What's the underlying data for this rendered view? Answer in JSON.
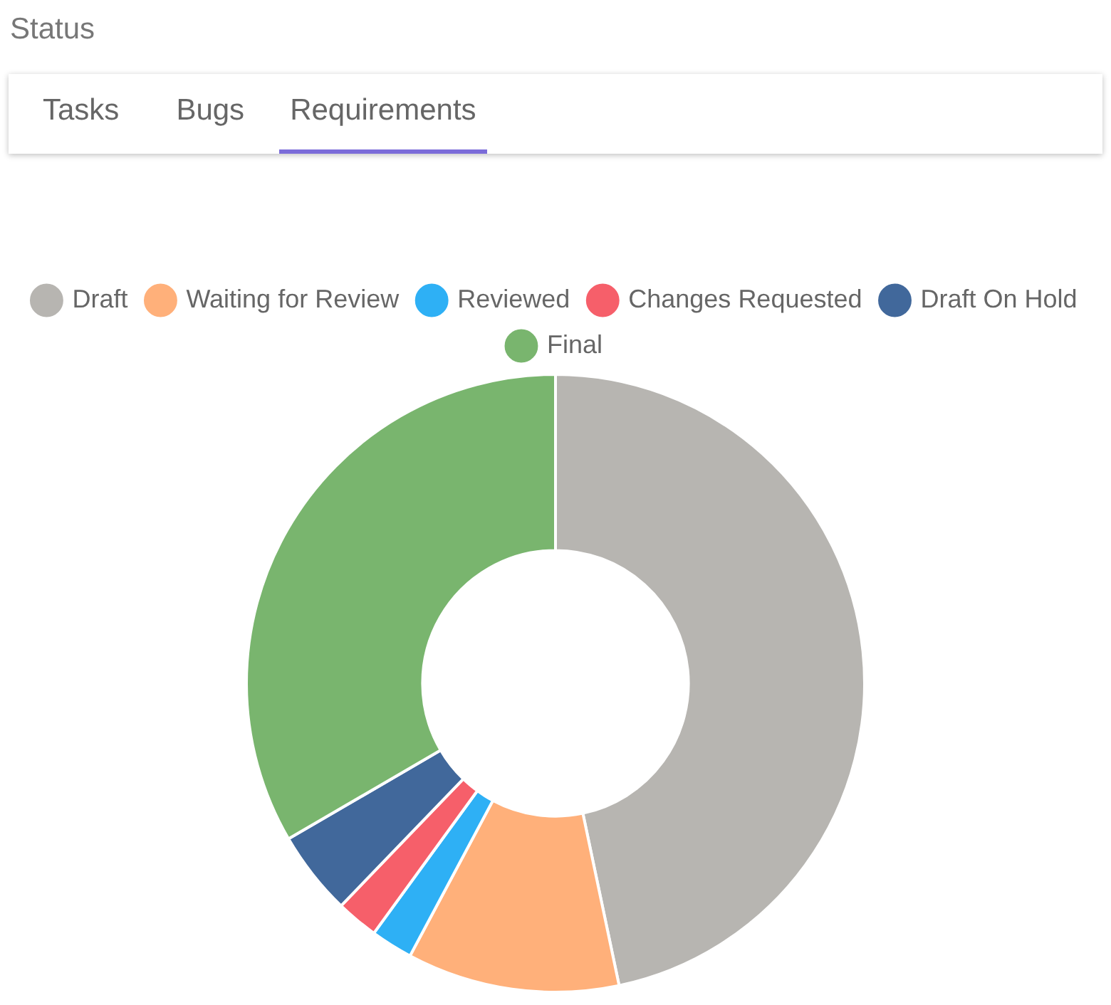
{
  "chart_data": {
    "type": "donut",
    "title": "Status",
    "annotations": [
      "Tasks",
      "Bugs",
      "Requirements"
    ],
    "categories": [
      "Draft",
      "Waiting for Review",
      "Reviewed",
      "Changes Requested",
      "Draft On Hold",
      "Final"
    ],
    "values": [
      46.7,
      11.1,
      2.2,
      2.2,
      4.4,
      33.4
    ],
    "colors": [
      "#b7b5b1",
      "#ffb07a",
      "#2eb0f5",
      "#f65f6a",
      "#41689b",
      "#79b56e"
    ],
    "legend": "top"
  }
}
